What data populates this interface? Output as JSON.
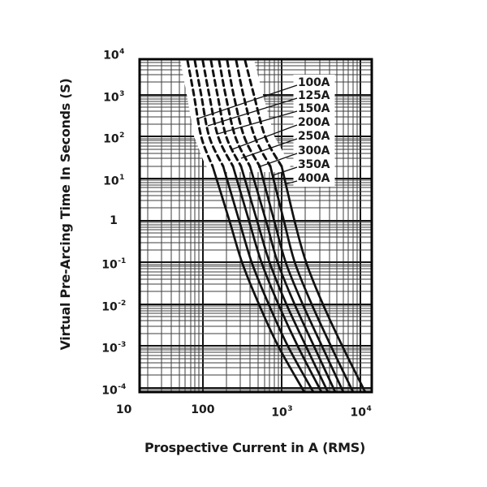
{
  "colors": {
    "background": "#ffffff",
    "curve": "#111111",
    "grid_major": "#141414",
    "grid_minor": "#3d3d3d",
    "border": "#000000",
    "text": "#1a1a1a"
  },
  "chart_data": {
    "type": "line",
    "title": "",
    "xlabel": "Prospective Current in A (RMS)",
    "ylabel": "Virtual Pre-Arcing Time In Seconds (S)",
    "x_scale": "log",
    "y_scale": "log",
    "xlim": [
      15.8,
      13800
    ],
    "ylim": [
      8e-05,
      7080
    ],
    "grid": "full log-log grid, major decade lines and minor lines 2-9, both axes",
    "legend_position": "inside-right label box with leader lines",
    "x_ticks": [
      {
        "value": 10,
        "label": "10"
      },
      {
        "value": 100,
        "label": "100"
      },
      {
        "value": 1000,
        "label": "10^3"
      },
      {
        "value": 10000,
        "label": "10^4"
      }
    ],
    "y_ticks": [
      {
        "value": 10000,
        "label": "10^4"
      },
      {
        "value": 1000,
        "label": "10^3"
      },
      {
        "value": 100,
        "label": "10^2"
      },
      {
        "value": 10,
        "label": "10^1"
      },
      {
        "value": 1,
        "label": "1"
      },
      {
        "value": 0.1,
        "label": "10^-1"
      },
      {
        "value": 0.01,
        "label": "10^-2"
      },
      {
        "value": 0.001,
        "label": "10^-3"
      },
      {
        "value": 0.0001,
        "label": "10^-4"
      }
    ],
    "series_note": "points are [prospective current A, virtual pre-arcing time s]; portion above ~20 s drawn dashed",
    "series": [
      {
        "name": "100A",
        "dash_until_index": 3,
        "points": [
          [
            64,
            6460
          ],
          [
            77.4,
            950
          ],
          [
            95.7,
            97
          ],
          [
            133,
            19.6
          ],
          [
            219,
            0.94
          ],
          [
            313,
            0.101
          ],
          [
            502,
            0.011
          ],
          [
            907,
            0.00098
          ],
          [
            1930,
            8e-05
          ]
        ]
      },
      {
        "name": "125A",
        "dash_until_index": 3,
        "points": [
          [
            79.2,
            6460
          ],
          [
            95.7,
            950
          ],
          [
            121,
            97
          ],
          [
            181,
            19.6
          ],
          [
            291,
            0.94
          ],
          [
            415,
            0.101
          ],
          [
            667,
            0.011
          ],
          [
            1200,
            0.00098
          ],
          [
            2510,
            8e-05
          ]
        ]
      },
      {
        "name": "150A",
        "dash_until_index": 3,
        "points": [
          [
            100,
            6460
          ],
          [
            121,
            950
          ],
          [
            157,
            97
          ],
          [
            241,
            19.6
          ],
          [
            387,
            0.94
          ],
          [
            552,
            0.101
          ],
          [
            886,
            0.011
          ],
          [
            1600,
            0.00098
          ],
          [
            3180,
            8e-05
          ]
        ]
      },
      {
        "name": "200A",
        "dash_until_index": 3,
        "points": [
          [
            127,
            6460
          ],
          [
            154,
            950
          ],
          [
            199,
            97
          ],
          [
            305,
            19.6
          ],
          [
            490,
            0.94
          ],
          [
            699,
            0.101
          ],
          [
            1120,
            0.011
          ],
          [
            2030,
            0.00098
          ],
          [
            3840,
            8e-05
          ]
        ]
      },
      {
        "name": "250A",
        "dash_until_index": 3,
        "points": [
          [
            161,
            6460
          ],
          [
            195,
            950
          ],
          [
            259,
            97
          ],
          [
            396,
            19.6
          ],
          [
            636,
            0.94
          ],
          [
            886,
            0.101
          ],
          [
            1420,
            0.011
          ],
          [
            2570,
            0.00098
          ],
          [
            4750,
            8e-05
          ]
        ]
      },
      {
        "name": "300A",
        "dash_until_index": 3,
        "points": [
          [
            204,
            6460
          ],
          [
            247,
            950
          ],
          [
            336,
            97
          ],
          [
            526,
            19.6
          ],
          [
            806,
            0.94
          ],
          [
            1120,
            0.101
          ],
          [
            1800,
            0.011
          ],
          [
            3250,
            0.00098
          ],
          [
            6020,
            8e-05
          ]
        ]
      },
      {
        "name": "350A",
        "dash_until_index": 3,
        "points": [
          [
            265,
            6460
          ],
          [
            328,
            950
          ],
          [
            456,
            97
          ],
          [
            716,
            19.6
          ],
          [
            1070,
            0.94
          ],
          [
            1460,
            0.101
          ],
          [
            2340,
            0.011
          ],
          [
            4220,
            0.00098
          ],
          [
            8000,
            8e-05
          ]
        ]
      },
      {
        "name": "400A",
        "dash_until_index": 3,
        "points": [
          [
            344,
            6460
          ],
          [
            446,
            950
          ],
          [
            621,
            97
          ],
          [
            997,
            19.6
          ],
          [
            1460,
            0.94
          ],
          [
            2030,
            0.101
          ],
          [
            3250,
            0.011
          ],
          [
            5880,
            0.00098
          ],
          [
            11400,
            8e-05
          ]
        ]
      }
    ]
  }
}
